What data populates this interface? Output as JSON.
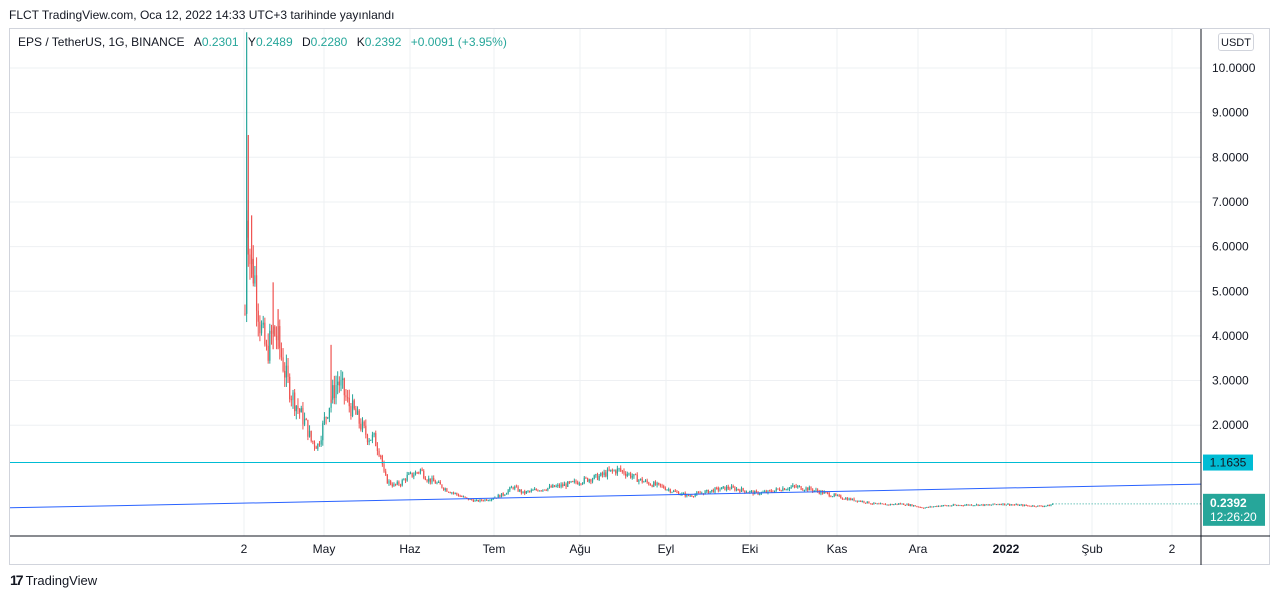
{
  "header": {
    "published": "FLCT TradingView.com, Oca 12, 2022 14:33 UTC+3 tarihinde yayınlandı"
  },
  "legend": {
    "symbol": "EPS / TetherUS, 1G, BINANCE",
    "open_label": "A",
    "open": "0.2301",
    "high_label": "Y",
    "high": "0.2489",
    "low_label": "D",
    "low": "0.2280",
    "close_label": "K",
    "close": "0.2392",
    "change": "+0.0091 (+3.95%)"
  },
  "currency_button": "USDT",
  "footer": {
    "logo": "17",
    "brand": "TradingView"
  },
  "colors": {
    "up": "#26a69a",
    "down": "#ef5350",
    "hline": "#00bcd4",
    "trend": "#2962ff",
    "price_label": "#26a69a"
  },
  "chart_data": {
    "type": "candlestick",
    "x_ticks": [
      "2",
      "May",
      "Haz",
      "Tem",
      "Ağu",
      "Eyl",
      "Eki",
      "Kas",
      "Ara",
      "2022",
      "Şub",
      "2"
    ],
    "y_ticks": [
      "10.0000",
      "9.0000",
      "8.0000",
      "7.0000",
      "6.0000",
      "5.0000",
      "4.0000",
      "3.0000",
      "2.0000"
    ],
    "ylim": [
      0,
      10.8
    ],
    "horizontal_line": {
      "value": 1.1635,
      "label": "1.1635"
    },
    "trendline": {
      "start": 0.15,
      "end": 0.68
    },
    "last_price": {
      "value": 0.2392,
      "label": "0.2392",
      "countdown": "12:26:20"
    },
    "price_path": [
      [
        0,
        4.5
      ],
      [
        1,
        6.9
      ],
      [
        3,
        5.7
      ],
      [
        6,
        5.3
      ],
      [
        9,
        4.3
      ],
      [
        13,
        3.6
      ],
      [
        17,
        4.1
      ],
      [
        20,
        3.9
      ],
      [
        24,
        3.2
      ],
      [
        28,
        2.7
      ],
      [
        33,
        2.3
      ],
      [
        37,
        2.0
      ],
      [
        40,
        1.65
      ],
      [
        44,
        1.55
      ],
      [
        48,
        2.1
      ],
      [
        52,
        2.6
      ],
      [
        56,
        3.0
      ],
      [
        59,
        2.8
      ],
      [
        62,
        2.5
      ],
      [
        66,
        2.3
      ],
      [
        70,
        2.0
      ],
      [
        74,
        1.75
      ],
      [
        78,
        1.7
      ],
      [
        82,
        1.35
      ],
      [
        84,
        0.9
      ],
      [
        86,
        0.75
      ],
      [
        90,
        0.65
      ],
      [
        94,
        0.7
      ],
      [
        98,
        0.85
      ],
      [
        102,
        0.9
      ],
      [
        106,
        1.0
      ],
      [
        110,
        0.8
      ],
      [
        116,
        0.7
      ],
      [
        122,
        0.55
      ],
      [
        128,
        0.45
      ],
      [
        134,
        0.35
      ],
      [
        140,
        0.3
      ],
      [
        148,
        0.35
      ],
      [
        156,
        0.45
      ],
      [
        162,
        0.62
      ],
      [
        168,
        0.48
      ],
      [
        176,
        0.55
      ],
      [
        184,
        0.6
      ],
      [
        192,
        0.65
      ],
      [
        200,
        0.72
      ],
      [
        208,
        0.8
      ],
      [
        214,
        0.85
      ],
      [
        220,
        0.95
      ],
      [
        226,
        1.0
      ],
      [
        232,
        0.9
      ],
      [
        238,
        0.78
      ],
      [
        244,
        0.7
      ],
      [
        252,
        0.62
      ],
      [
        260,
        0.5
      ],
      [
        268,
        0.42
      ],
      [
        276,
        0.48
      ],
      [
        284,
        0.55
      ],
      [
        292,
        0.6
      ],
      [
        300,
        0.55
      ],
      [
        308,
        0.48
      ],
      [
        316,
        0.5
      ],
      [
        324,
        0.58
      ],
      [
        332,
        0.62
      ],
      [
        340,
        0.58
      ],
      [
        348,
        0.5
      ],
      [
        356,
        0.42
      ],
      [
        364,
        0.35
      ],
      [
        372,
        0.3
      ],
      [
        380,
        0.24
      ],
      [
        388,
        0.22
      ],
      [
        396,
        0.24
      ],
      [
        404,
        0.2
      ],
      [
        410,
        0.15
      ],
      [
        416,
        0.18
      ],
      [
        420,
        0.2
      ],
      [
        424,
        0.2
      ],
      [
        432,
        0.21
      ],
      [
        440,
        0.22
      ],
      [
        448,
        0.21
      ],
      [
        456,
        0.24
      ],
      [
        464,
        0.22
      ],
      [
        472,
        0.2
      ],
      [
        480,
        0.19
      ],
      [
        486,
        0.2
      ],
      [
        488,
        0.2392
      ]
    ],
    "spikes": [
      {
        "day": 1,
        "low": 4.5,
        "high": 10.8
      },
      {
        "day": 2,
        "low": 6.2,
        "high": 8.5
      },
      {
        "day": 4,
        "low": 5.3,
        "high": 6.7
      },
      {
        "day": 17,
        "low": 3.7,
        "high": 5.2
      },
      {
        "day": 20,
        "low": 3.7,
        "high": 4.6
      },
      {
        "day": 52,
        "low": 2.5,
        "high": 3.8
      }
    ]
  }
}
